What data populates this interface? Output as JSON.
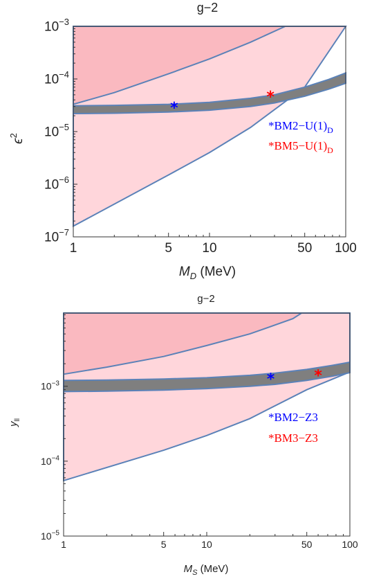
{
  "chart_data": [
    {
      "type": "area",
      "title": "g−2",
      "xlabel": "M",
      "xlabel_sub": "D",
      "xlabel_unit": " (MeV)",
      "ylabel": "ϵ",
      "ylabel_sup": "2",
      "xscale": "log",
      "yscale": "log",
      "xlim": [
        1,
        100
      ],
      "ylim": [
        1e-07,
        0.001
      ],
      "xticks": [
        1,
        5,
        10,
        50,
        100
      ],
      "xtick_labels": [
        "1",
        "5",
        "10",
        "50",
        "100"
      ],
      "yticks": [
        1e-07,
        1e-06,
        1e-05,
        0.0001,
        0.001
      ],
      "ytick_labels": [
        "10",
        "10",
        "10",
        "10",
        "10"
      ],
      "ytick_exps": [
        "−7",
        "−6",
        "−5",
        "−4",
        "−3"
      ],
      "colors": {
        "excluded_fill": "#ffd6db",
        "excluded_dark": "#f7a5ad",
        "border": "#5b82b8",
        "band": "#7f7f7f"
      },
      "regions": [
        {
          "kind": "excluded-light",
          "points": [
            [
              1,
              1.6e-07
            ],
            [
              5,
              1.5e-06
            ],
            [
              10,
              4e-06
            ],
            [
              20,
              1.2e-05
            ],
            [
              50,
              7e-05
            ],
            [
              100,
              0.001
            ],
            [
              1,
              0.001
            ]
          ]
        },
        {
          "kind": "excluded-dark",
          "points": [
            [
              1,
              3.3e-05
            ],
            [
              2,
              5.5e-05
            ],
            [
              5,
              0.000125
            ],
            [
              10,
              0.00024
            ],
            [
              20,
              0.0005
            ],
            [
              36,
              0.001
            ],
            [
              1,
              0.001
            ]
          ]
        }
      ],
      "band": {
        "x": [
          1,
          2,
          5,
          10,
          20,
          30,
          50,
          75,
          100
        ],
        "lower": [
          2.2e-05,
          2.23e-05,
          2.35e-05,
          2.55e-05,
          3e-05,
          3.5e-05,
          4.7e-05,
          6.4e-05,
          8.3e-05
        ],
        "upper": [
          3.1e-05,
          3.15e-05,
          3.3e-05,
          3.6e-05,
          4.3e-05,
          5e-05,
          7e-05,
          9.8e-05,
          0.00013
        ]
      },
      "points": [
        {
          "label": "BM2−U(1)",
          "sub": "D",
          "x": 5.5,
          "y": 3e-05,
          "color": "#0000ff"
        },
        {
          "label": "BM5−U(1)",
          "sub": "D",
          "x": 28,
          "y": 4.9e-05,
          "color": "#ff0000"
        }
      ],
      "legend": "right"
    },
    {
      "type": "area",
      "title": "g−2",
      "xlabel": "M",
      "xlabel_sub": "S",
      "xlabel_unit": " (MeV)",
      "ylabel": "y",
      "ylabel_sub": "ll",
      "xscale": "log",
      "yscale": "log",
      "xlim": [
        1,
        100
      ],
      "ylim": [
        1e-05,
        0.0095
      ],
      "xticks": [
        1,
        5,
        10,
        50,
        100
      ],
      "xtick_labels": [
        "1",
        "5",
        "10",
        "50",
        "100"
      ],
      "yticks": [
        1e-05,
        0.0001,
        0.001
      ],
      "ytick_labels": [
        "10",
        "10",
        "10"
      ],
      "ytick_exps": [
        "−5",
        "−4",
        "−3"
      ],
      "colors": {
        "excluded_fill": "#ffd6db",
        "excluded_dark": "#f7a5ad",
        "border": "#5b82b8",
        "band": "#7f7f7f"
      },
      "regions": [
        {
          "kind": "excluded-light",
          "points": [
            [
              1,
              5.5e-05
            ],
            [
              5,
              0.00014
            ],
            [
              10,
              0.00022
            ],
            [
              20,
              0.00037
            ],
            [
              50,
              0.0009
            ],
            [
              100,
              0.00155
            ],
            [
              100,
              0.0095
            ],
            [
              1,
              0.0095
            ]
          ]
        },
        {
          "kind": "excluded-dark",
          "points": [
            [
              1,
              0.00145
            ],
            [
              2,
              0.0018
            ],
            [
              5,
              0.0025
            ],
            [
              10,
              0.0035
            ],
            [
              20,
              0.005
            ],
            [
              40,
              0.008
            ],
            [
              46,
              0.0095
            ],
            [
              1,
              0.0095
            ]
          ]
        }
      ],
      "band": {
        "x": [
          1,
          2,
          5,
          10,
          20,
          30,
          50,
          75,
          100
        ],
        "lower": [
          0.00085,
          0.00086,
          0.00089,
          0.00093,
          0.001,
          0.00106,
          0.0012,
          0.00136,
          0.00152
        ],
        "upper": [
          0.0012,
          0.00121,
          0.00125,
          0.0013,
          0.0014,
          0.0015,
          0.00168,
          0.0019,
          0.0021
        ]
      },
      "points": [
        {
          "label": "BM2−Z3",
          "x": 28,
          "y": 0.0013,
          "color": "#0000ff"
        },
        {
          "label": "BM3−Z3",
          "x": 60,
          "y": 0.00145,
          "color": "#ff0000"
        }
      ],
      "legend": "right"
    }
  ]
}
